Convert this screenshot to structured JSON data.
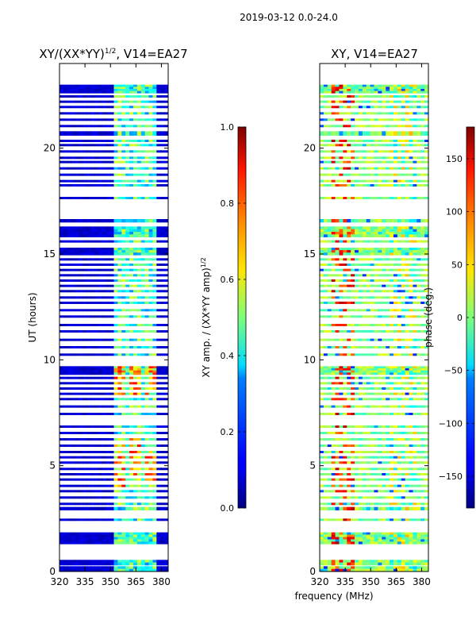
{
  "chart_data": {
    "type": "heatmap",
    "suptitle": "2019-03-12 0.0-24.0",
    "panels": [
      {
        "id": "amp",
        "title": "XY/(XX*YY)^{1/2}, V14=EA27",
        "title_main": "XY/(XX*YY)",
        "title_sup": "1/2",
        "title_tail": ", V14=EA27",
        "xlim": [
          320,
          384
        ],
        "ylim": [
          0,
          24
        ],
        "xticks": [
          320,
          335,
          350,
          365,
          380
        ],
        "yticks": [
          0,
          5,
          10,
          15,
          20
        ],
        "ylabel": "UT (hours)",
        "colorbar": {
          "label_main": "XY amp. / (XX*YY amp)",
          "label_sup": "1/2",
          "range": [
            0.0,
            1.0
          ],
          "ticks": [
            "0.0",
            "0.2",
            "0.4",
            "0.6",
            "0.8",
            "1.0"
          ]
        }
      },
      {
        "id": "phase",
        "title": "XY, V14=EA27",
        "xlim": [
          320,
          384
        ],
        "ylim": [
          0,
          24
        ],
        "xticks": [
          320,
          335,
          350,
          365,
          380
        ],
        "yticks": [
          0,
          5,
          10,
          15,
          20
        ],
        "colorbar": {
          "label": "phase (deg.)",
          "range": [
            -180,
            180
          ],
          "ticks": [
            "-150",
            "-100",
            "-50",
            "0",
            "50",
            "100",
            "150"
          ]
        }
      }
    ],
    "xlabel": "frequency (MHz)",
    "colormap": "jet",
    "data_bands_hours": [
      [
        0.0,
        0.25
      ],
      [
        0.3,
        0.55
      ],
      [
        1.3,
        1.85
      ],
      [
        2.4,
        2.5
      ],
      [
        2.9,
        3.05
      ],
      [
        3.15,
        3.25
      ],
      [
        3.45,
        3.55
      ],
      [
        3.75,
        3.85
      ],
      [
        4.0,
        4.1
      ],
      [
        4.3,
        4.4
      ],
      [
        4.55,
        4.65
      ],
      [
        4.8,
        4.9
      ],
      [
        5.1,
        5.2
      ],
      [
        5.35,
        5.45
      ],
      [
        5.6,
        5.7
      ],
      [
        5.9,
        6.0
      ],
      [
        6.2,
        6.3
      ],
      [
        6.5,
        6.6
      ],
      [
        6.8,
        6.9
      ],
      [
        7.4,
        7.5
      ],
      [
        7.75,
        7.85
      ],
      [
        8.1,
        8.2
      ],
      [
        8.35,
        8.45
      ],
      [
        8.6,
        8.7
      ],
      [
        8.85,
        8.95
      ],
      [
        9.1,
        9.2
      ],
      [
        9.3,
        9.7
      ],
      [
        10.2,
        10.3
      ],
      [
        10.55,
        10.65
      ],
      [
        10.9,
        11.0
      ],
      [
        11.3,
        11.4
      ],
      [
        11.6,
        11.7
      ],
      [
        12.0,
        12.1
      ],
      [
        12.3,
        12.4
      ],
      [
        12.65,
        12.75
      ],
      [
        12.9,
        13.0
      ],
      [
        13.2,
        13.3
      ],
      [
        13.45,
        13.55
      ],
      [
        13.7,
        13.8
      ],
      [
        13.95,
        14.05
      ],
      [
        14.2,
        14.3
      ],
      [
        14.45,
        14.55
      ],
      [
        14.7,
        14.8
      ],
      [
        14.95,
        15.3
      ],
      [
        15.55,
        15.65
      ],
      [
        15.8,
        16.3
      ],
      [
        16.5,
        16.65
      ],
      [
        17.6,
        17.7
      ],
      [
        18.2,
        18.3
      ],
      [
        18.4,
        18.5
      ],
      [
        18.7,
        18.8
      ],
      [
        19.0,
        19.1
      ],
      [
        19.3,
        19.4
      ],
      [
        19.5,
        19.6
      ],
      [
        19.8,
        19.9
      ],
      [
        20.1,
        20.2
      ],
      [
        20.3,
        20.4
      ],
      [
        20.6,
        20.8
      ],
      [
        21.0,
        21.1
      ],
      [
        21.3,
        21.4
      ],
      [
        21.6,
        21.7
      ],
      [
        21.9,
        22.0
      ],
      [
        22.15,
        22.25
      ],
      [
        22.4,
        22.5
      ],
      [
        22.6,
        23.0
      ]
    ],
    "amp_bright_band_mhz": [
      352,
      376
    ]
  }
}
